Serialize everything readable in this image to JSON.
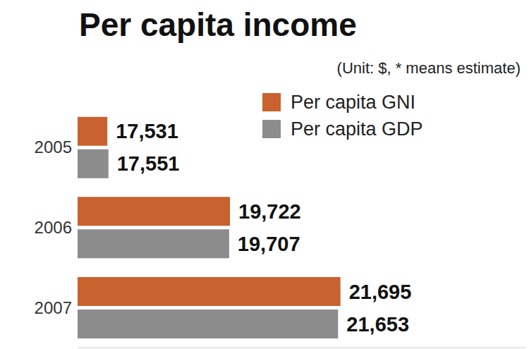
{
  "chart_data": {
    "type": "bar",
    "title": "Per capita income",
    "subtitle": "(Unit: $, * means estimate)",
    "orientation": "horizontal",
    "categories": [
      "2005",
      "2006",
      "2007"
    ],
    "series": [
      {
        "name": "Per capita GNI",
        "color": "#c8622f",
        "values": [
          17531,
          19722,
          21695
        ],
        "value_labels": [
          "17,531",
          "19,722",
          "21,695"
        ]
      },
      {
        "name": "Per capita GDP",
        "color": "#8c8c8c",
        "values": [
          17551,
          19707,
          21653
        ],
        "value_labels": [
          "17,551",
          "19,707",
          "21,653"
        ]
      }
    ],
    "xlim": [
      17000,
      25000
    ],
    "grid": false,
    "legend": "upper right",
    "data_labels": true,
    "tick_labels": "y"
  }
}
